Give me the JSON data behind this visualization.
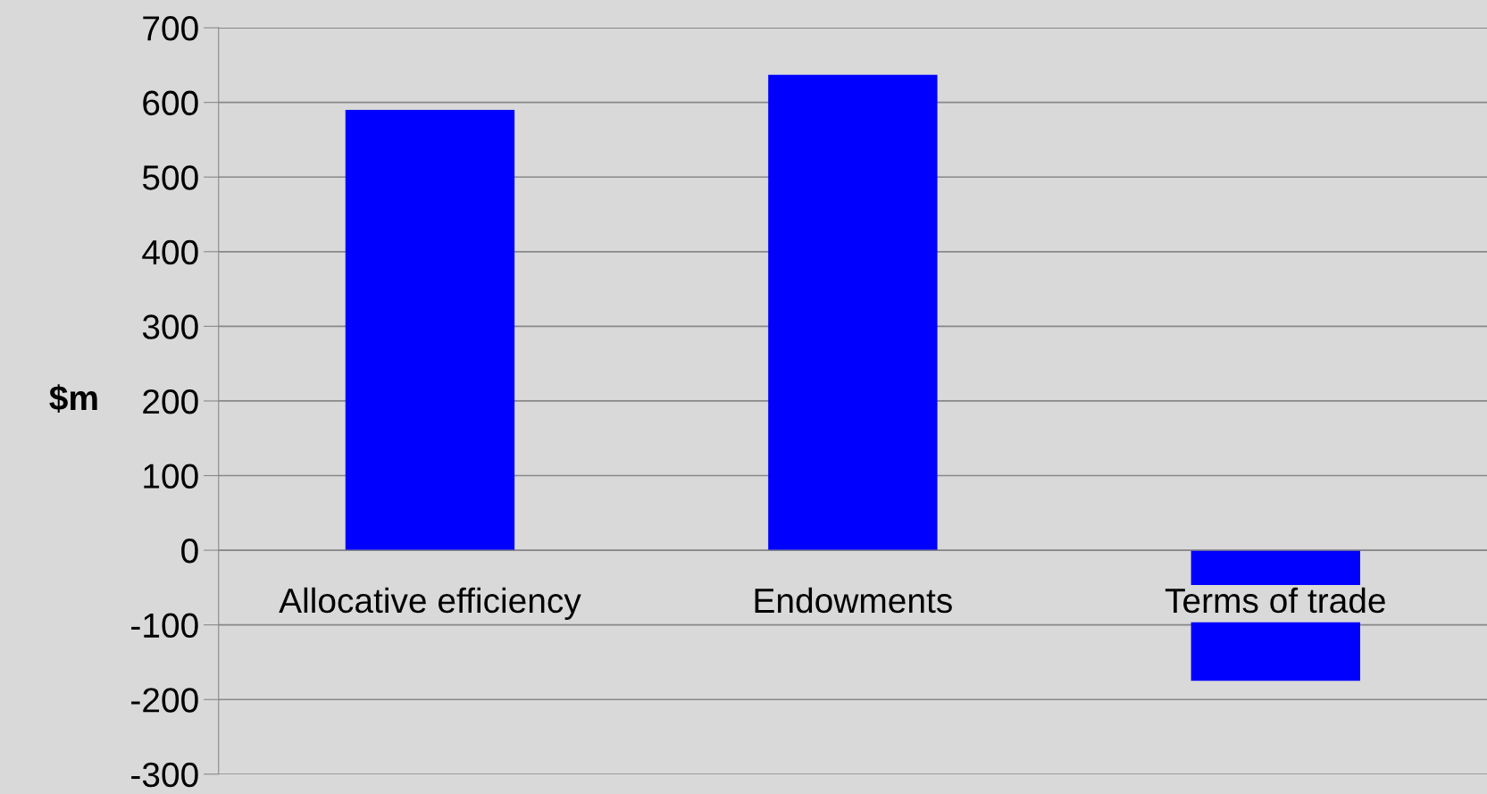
{
  "chart_data": {
    "type": "bar",
    "ylabel": "$m",
    "categories": [
      "Allocative efficiency",
      "Endowments",
      "Terms of trade"
    ],
    "values": [
      590,
      637,
      -175
    ],
    "color": "#0000ff",
    "ylim": [
      -300,
      700
    ],
    "yticks": [
      -300,
      -200,
      -100,
      0,
      100,
      200,
      300,
      400,
      500,
      600,
      700
    ],
    "grid": "y"
  }
}
